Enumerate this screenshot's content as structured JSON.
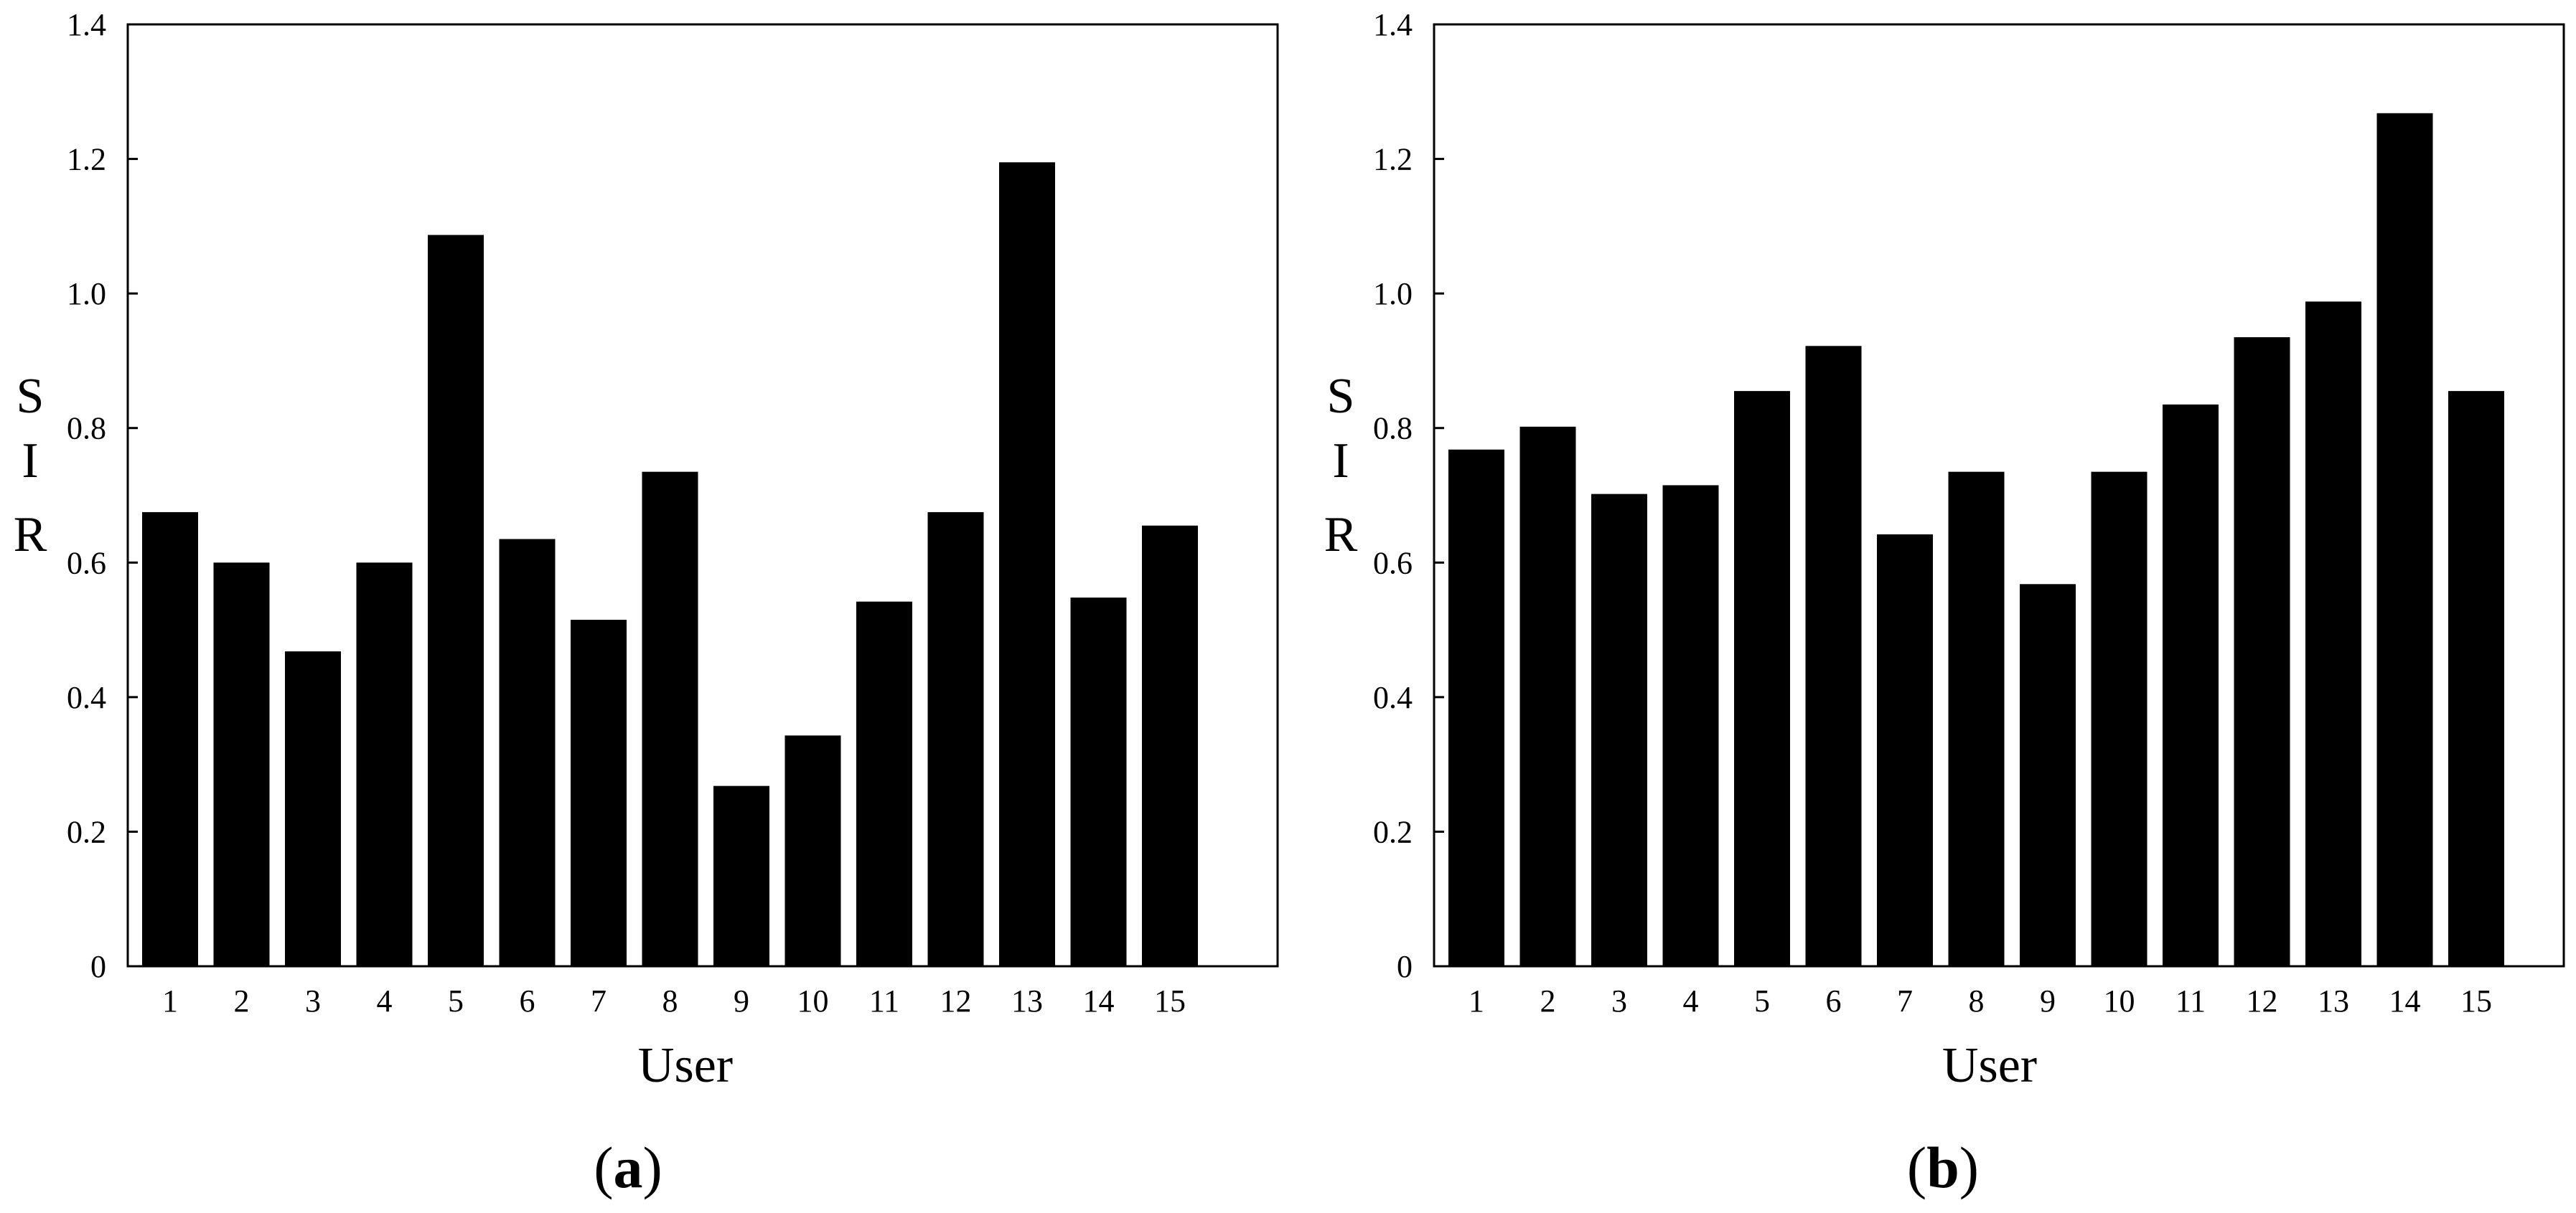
{
  "chart_data": [
    {
      "type": "bar",
      "panel_label": "a",
      "title": "",
      "xlabel": "User",
      "ylabel": "SIR",
      "ylabel_letters": [
        "S",
        "I",
        "R"
      ],
      "categories": [
        "1",
        "2",
        "3",
        "4",
        "5",
        "6",
        "7",
        "8",
        "9",
        "10",
        "11",
        "12",
        "13",
        "14",
        "15"
      ],
      "values": [
        0.675,
        0.6,
        0.468,
        0.6,
        1.087,
        0.635,
        0.515,
        0.735,
        0.268,
        0.343,
        0.542,
        0.675,
        1.195,
        0.548,
        0.655
      ],
      "ylim": [
        0,
        1.4
      ],
      "yticks": [
        0,
        0.2,
        0.4,
        0.6,
        0.8,
        1.0,
        1.2,
        1.4
      ],
      "ytick_labels": [
        "0",
        "0.2",
        "0.4",
        "0.6",
        "0.8",
        "1.0",
        "1.2",
        "1.4"
      ],
      "grid": false,
      "legend": "none",
      "bar_color": "#000000"
    },
    {
      "type": "bar",
      "panel_label": "b",
      "title": "",
      "xlabel": "User",
      "ylabel": "SIR",
      "ylabel_letters": [
        "S",
        "I",
        "R"
      ],
      "categories": [
        "1",
        "2",
        "3",
        "4",
        "5",
        "6",
        "7",
        "8",
        "9",
        "10",
        "11",
        "12",
        "13",
        "14",
        "15"
      ],
      "values": [
        0.768,
        0.802,
        0.702,
        0.715,
        0.855,
        0.922,
        0.642,
        0.735,
        0.568,
        0.735,
        0.835,
        0.935,
        0.988,
        1.268,
        0.855
      ],
      "ylim": [
        0,
        1.4
      ],
      "yticks": [
        0,
        0.2,
        0.4,
        0.6,
        0.8,
        1.0,
        1.2,
        1.4
      ],
      "ytick_labels": [
        "0",
        "0.2",
        "0.4",
        "0.6",
        "0.8",
        "1.0",
        "1.2",
        "1.4"
      ],
      "grid": false,
      "legend": "none",
      "bar_color": "#000000"
    }
  ],
  "colors": {
    "axis": "#000000",
    "background": "#ffffff"
  }
}
